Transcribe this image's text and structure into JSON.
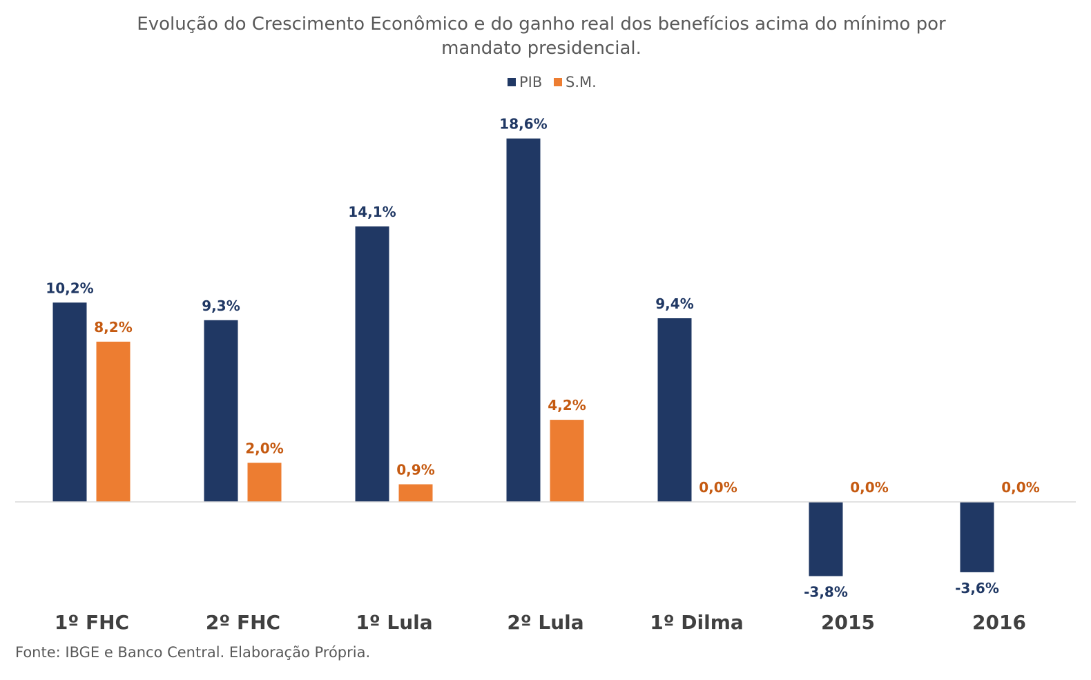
{
  "chart_data": {
    "type": "bar",
    "title_line1": "Evolução do Crescimento Econômico e do ganho real dos benefícios acima do mínimo por",
    "title_line2": "mandato presidencial.",
    "categories": [
      "1º FHC",
      "2º FHC",
      "1º Lula",
      "2º Lula",
      "1º Dilma",
      "2015",
      "2016"
    ],
    "series": [
      {
        "name": "PIB",
        "color": "#203864",
        "values": [
          10.2,
          9.3,
          14.1,
          18.6,
          9.4,
          -3.8,
          -3.6
        ],
        "labels": [
          "10,2%",
          "9,3%",
          "14,1%",
          "18,6%",
          "9,4%",
          "-3,8%",
          "-3,6%"
        ]
      },
      {
        "name": "S.M.",
        "color": "#ED7D31",
        "label_color": "#C55A11",
        "values": [
          8.2,
          2.0,
          0.9,
          4.2,
          0.0,
          0.0,
          0.0
        ],
        "labels": [
          "8,2%",
          "2,0%",
          "0,9%",
          "4,2%",
          "0,0%",
          "0,0%",
          "0,0%"
        ]
      }
    ],
    "legend": [
      "PIB",
      "S.M."
    ],
    "legend_position": "top-center",
    "ylim": [
      -4.6,
      19.8
    ],
    "grid": false,
    "xlabel": "",
    "ylabel": ""
  },
  "source": "Fonte: IBGE e Banco Central. Elaboração Própria."
}
